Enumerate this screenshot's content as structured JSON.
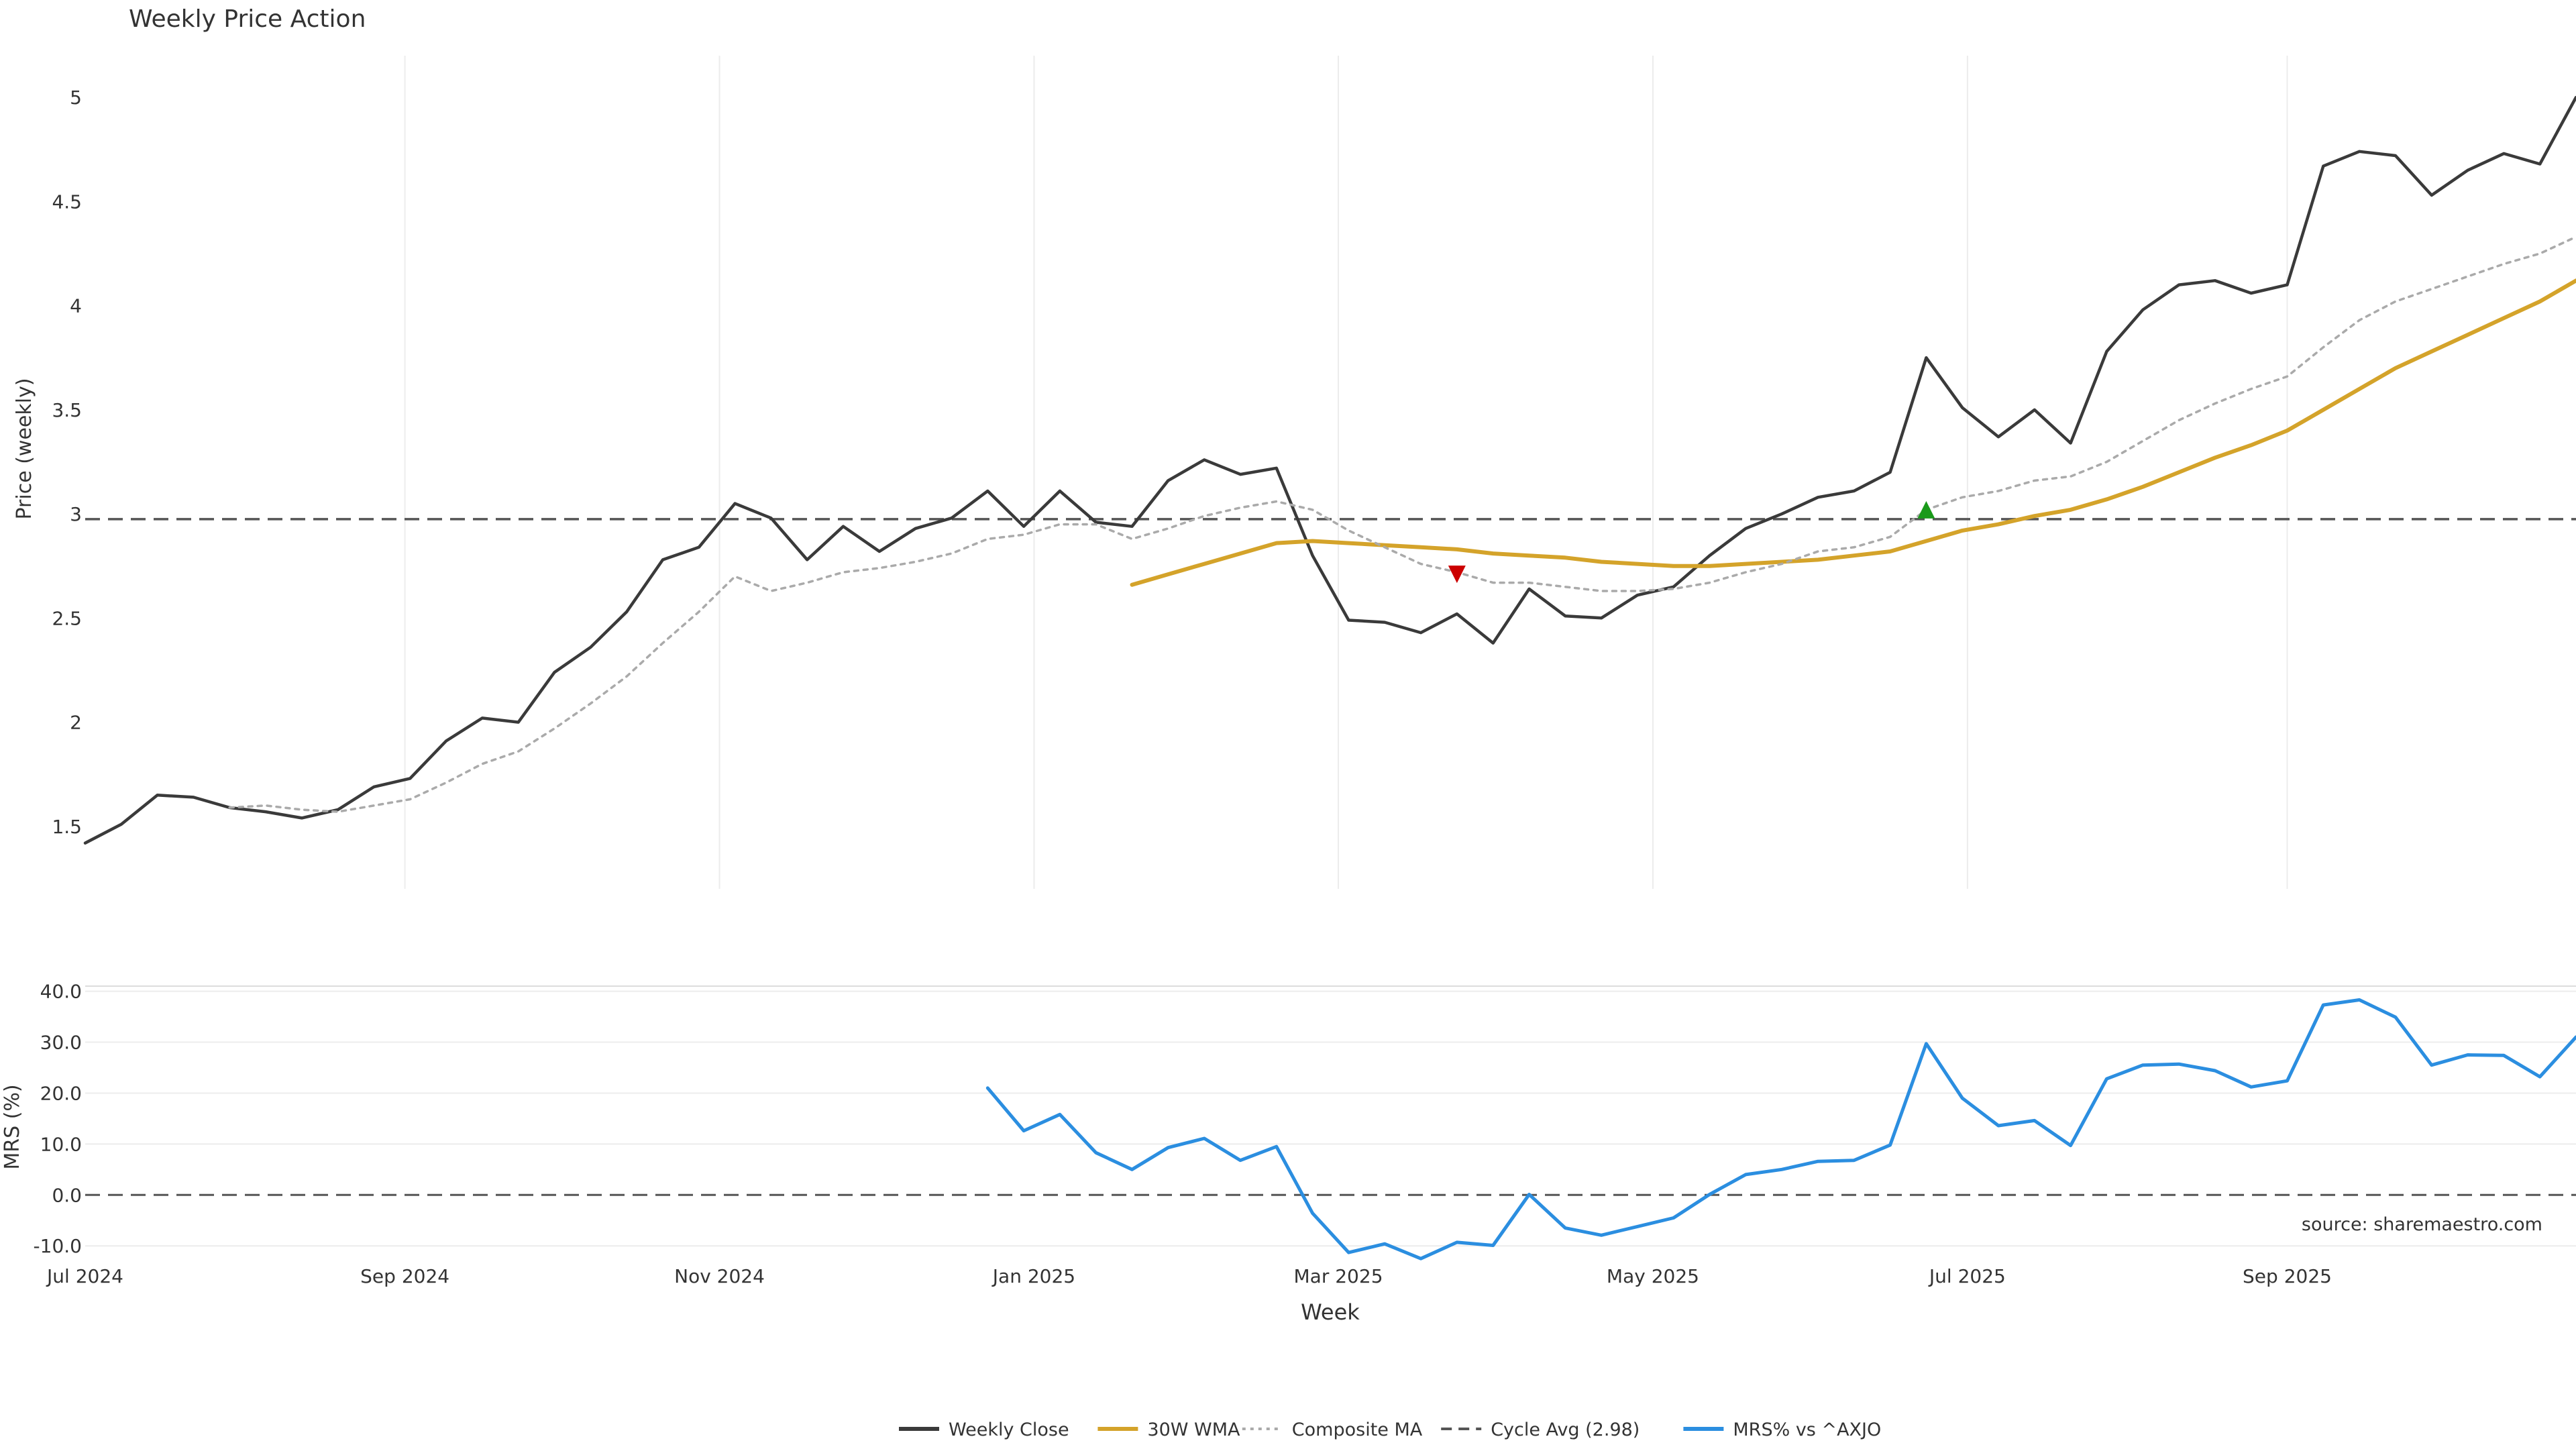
{
  "chart_data": [
    {
      "type": "line",
      "title": "Weekly Price Action",
      "ylabel": "Price (weekly)",
      "ylim": [
        1.2,
        5.2
      ],
      "yticks": [
        1.5,
        2,
        2.5,
        3,
        3.5,
        4,
        4.5,
        5
      ],
      "ytick_labels": [
        "1.5",
        "2",
        "2.5",
        "3",
        "3.5",
        "4",
        "4.5",
        "5"
      ],
      "grid": "vertical",
      "reference_line": {
        "name": "Cycle Avg (2.98)",
        "y": 2.975,
        "style": "dashed"
      },
      "series": [
        {
          "name": "Weekly Close",
          "color": "#3a3a3a",
          "style": "solid",
          "x": [
            "2024-07-01",
            "2024-07-08",
            "2024-07-15",
            "2024-07-22",
            "2024-07-29",
            "2024-08-05",
            "2024-08-12",
            "2024-08-19",
            "2024-08-26",
            "2024-09-02",
            "2024-09-09",
            "2024-09-16",
            "2024-09-23",
            "2024-09-30",
            "2024-10-07",
            "2024-10-14",
            "2024-10-21",
            "2024-10-28",
            "2024-11-04",
            "2024-11-11",
            "2024-11-18",
            "2024-11-25",
            "2024-12-02",
            "2024-12-09",
            "2024-12-16",
            "2024-12-23",
            "2024-12-30",
            "2025-01-06",
            "2025-01-13",
            "2025-01-20",
            "2025-01-27",
            "2025-02-03",
            "2025-02-10",
            "2025-02-17",
            "2025-02-24",
            "2025-03-03",
            "2025-03-10",
            "2025-03-17",
            "2025-03-24",
            "2025-03-31",
            "2025-04-07",
            "2025-04-14",
            "2025-04-21",
            "2025-04-28",
            "2025-05-05",
            "2025-05-12",
            "2025-05-19",
            "2025-05-26",
            "2025-06-02",
            "2025-06-09",
            "2025-06-16",
            "2025-06-23",
            "2025-06-30",
            "2025-07-07",
            "2025-07-14",
            "2025-07-21",
            "2025-07-28",
            "2025-08-04",
            "2025-08-11",
            "2025-08-18",
            "2025-08-25",
            "2025-09-01",
            "2025-09-08",
            "2025-09-15",
            "2025-09-22",
            "2025-09-29",
            "2025-10-06",
            "2025-10-13",
            "2025-10-20",
            "2025-10-27"
          ],
          "y": [
            1.42,
            1.51,
            1.65,
            1.64,
            1.59,
            1.57,
            1.54,
            1.58,
            1.69,
            1.73,
            1.91,
            2.02,
            2.0,
            2.24,
            2.36,
            2.53,
            2.78,
            2.84,
            3.05,
            2.98,
            2.78,
            2.94,
            2.82,
            2.93,
            2.98,
            3.11,
            2.94,
            3.11,
            2.96,
            2.94,
            3.16,
            3.26,
            3.19,
            3.22,
            2.8,
            2.49,
            2.48,
            2.43,
            2.52,
            2.38,
            2.64,
            2.51,
            2.5,
            2.61,
            2.65,
            2.8,
            2.93,
            3.0,
            3.08,
            3.11,
            3.2,
            3.75,
            3.51,
            3.37,
            3.5,
            3.34,
            3.78,
            3.98,
            4.1,
            4.12,
            4.06,
            4.1,
            4.67,
            4.74,
            4.72,
            4.53,
            4.65,
            4.73,
            4.68,
            5.0
          ]
        },
        {
          "name": "30W WMA",
          "color": "#d4a32a",
          "style": "solid",
          "x": [
            "2025-01-20",
            "2025-01-27",
            "2025-02-03",
            "2025-02-10",
            "2025-02-17",
            "2025-02-24",
            "2025-03-03",
            "2025-03-10",
            "2025-03-17",
            "2025-03-24",
            "2025-03-31",
            "2025-04-07",
            "2025-04-14",
            "2025-04-21",
            "2025-04-28",
            "2025-05-05",
            "2025-05-12",
            "2025-05-19",
            "2025-05-26",
            "2025-06-02",
            "2025-06-09",
            "2025-06-16",
            "2025-06-23",
            "2025-06-30",
            "2025-07-07",
            "2025-07-14",
            "2025-07-21",
            "2025-07-28",
            "2025-08-04",
            "2025-08-11",
            "2025-08-18",
            "2025-08-25",
            "2025-09-01",
            "2025-09-08",
            "2025-09-15",
            "2025-09-22",
            "2025-09-29",
            "2025-10-06",
            "2025-10-13",
            "2025-10-20",
            "2025-10-27"
          ],
          "y": [
            2.66,
            2.71,
            2.76,
            2.81,
            2.86,
            2.87,
            2.86,
            2.85,
            2.84,
            2.83,
            2.81,
            2.8,
            2.79,
            2.77,
            2.76,
            2.75,
            2.75,
            2.76,
            2.77,
            2.78,
            2.8,
            2.82,
            2.87,
            2.92,
            2.95,
            2.99,
            3.02,
            3.07,
            3.13,
            3.2,
            3.27,
            3.33,
            3.4,
            3.5,
            3.6,
            3.7,
            3.78,
            3.86,
            3.94,
            4.02,
            4.12
          ]
        },
        {
          "name": "Composite MA",
          "color": "#aaaaaa",
          "style": "dotted",
          "x": [
            "2024-07-29",
            "2024-08-05",
            "2024-08-12",
            "2024-08-19",
            "2024-08-26",
            "2024-09-02",
            "2024-09-09",
            "2024-09-16",
            "2024-09-23",
            "2024-09-30",
            "2024-10-07",
            "2024-10-14",
            "2024-10-21",
            "2024-10-28",
            "2024-11-04",
            "2024-11-11",
            "2024-11-18",
            "2024-11-25",
            "2024-12-02",
            "2024-12-09",
            "2024-12-16",
            "2024-12-23",
            "2024-12-30",
            "2025-01-06",
            "2025-01-13",
            "2025-01-20",
            "2025-01-27",
            "2025-02-03",
            "2025-02-10",
            "2025-02-17",
            "2025-02-24",
            "2025-03-03",
            "2025-03-10",
            "2025-03-17",
            "2025-03-24",
            "2025-03-31",
            "2025-04-07",
            "2025-04-14",
            "2025-04-21",
            "2025-04-28",
            "2025-05-05",
            "2025-05-12",
            "2025-05-19",
            "2025-05-26",
            "2025-06-02",
            "2025-06-09",
            "2025-06-16",
            "2025-06-23",
            "2025-06-30",
            "2025-07-07",
            "2025-07-14",
            "2025-07-21",
            "2025-07-28",
            "2025-08-04",
            "2025-08-11",
            "2025-08-18",
            "2025-08-25",
            "2025-09-01",
            "2025-09-08",
            "2025-09-15",
            "2025-09-22",
            "2025-09-29",
            "2025-10-06",
            "2025-10-13",
            "2025-10-20",
            "2025-10-27"
          ],
          "y": [
            1.59,
            1.6,
            1.58,
            1.57,
            1.6,
            1.63,
            1.71,
            1.8,
            1.86,
            1.97,
            2.09,
            2.22,
            2.38,
            2.53,
            2.7,
            2.63,
            2.67,
            2.72,
            2.74,
            2.77,
            2.81,
            2.88,
            2.9,
            2.95,
            2.95,
            2.88,
            2.93,
            2.99,
            3.03,
            3.06,
            3.02,
            2.92,
            2.84,
            2.76,
            2.72,
            2.67,
            2.67,
            2.65,
            2.63,
            2.63,
            2.64,
            2.67,
            2.72,
            2.76,
            2.82,
            2.84,
            2.89,
            3.02,
            3.08,
            3.11,
            3.16,
            3.18,
            3.25,
            3.35,
            3.45,
            3.53,
            3.6,
            3.66,
            3.8,
            3.93,
            4.02,
            4.08,
            4.14,
            4.2,
            4.25,
            4.33
          ]
        }
      ],
      "annotations": [
        {
          "type": "triangle-down",
          "x": "2025-03-24",
          "y": 2.71,
          "color": "#cc0000"
        },
        {
          "type": "triangle-up",
          "x": "2025-06-23",
          "y": 3.02,
          "color": "#1a9a1a"
        }
      ]
    },
    {
      "type": "line",
      "ylabel": "MRS (%)",
      "xlabel": "Week",
      "ylim": [
        -13,
        41
      ],
      "yticks": [
        -10,
        0,
        10,
        20,
        30,
        40
      ],
      "ytick_labels": [
        "-10.0",
        "0.0",
        "10.0",
        "20.0",
        "30.0",
        "40.0"
      ],
      "grid": "horizontal",
      "reference_line": {
        "y": 0,
        "style": "dashed"
      },
      "xticks": [
        "2024-07-01",
        "2024-09-01",
        "2024-11-01",
        "2025-01-01",
        "2025-03-01",
        "2025-05-01",
        "2025-07-01",
        "2025-09-01"
      ],
      "xtick_labels": [
        "Jul 2024",
        "Sep 2024",
        "Nov 2024",
        "Jan 2025",
        "Mar 2025",
        "May 2025",
        "Jul 2025",
        "Sep 2025"
      ],
      "xlim": [
        "2024-07-01",
        "2025-10-27"
      ],
      "series": [
        {
          "name": "MRS% vs ^AXJO",
          "color": "#2b8ee0",
          "style": "solid",
          "x": [
            "2024-12-23",
            "2024-12-30",
            "2025-01-06",
            "2025-01-13",
            "2025-01-20",
            "2025-01-27",
            "2025-02-03",
            "2025-02-10",
            "2025-02-17",
            "2025-02-24",
            "2025-03-03",
            "2025-03-10",
            "2025-03-17",
            "2025-03-24",
            "2025-03-31",
            "2025-04-07",
            "2025-04-14",
            "2025-04-21",
            "2025-04-28",
            "2025-05-05",
            "2025-05-12",
            "2025-05-19",
            "2025-05-26",
            "2025-06-02",
            "2025-06-09",
            "2025-06-16",
            "2025-06-23",
            "2025-06-30",
            "2025-07-07",
            "2025-07-14",
            "2025-07-21",
            "2025-07-28",
            "2025-08-04",
            "2025-08-11",
            "2025-08-18",
            "2025-08-25",
            "2025-09-01",
            "2025-09-08",
            "2025-09-15",
            "2025-09-22",
            "2025-09-29",
            "2025-10-06",
            "2025-10-13",
            "2025-10-20",
            "2025-10-27"
          ],
          "y": [
            21,
            12.6,
            15.8,
            8.3,
            5,
            9.3,
            11.1,
            6.8,
            9.5,
            -3.6,
            -11.3,
            -9.6,
            -12.5,
            -9.3,
            -9.9,
            0.1,
            -6.5,
            -7.9,
            -6.2,
            -4.5,
            0.1,
            4,
            5,
            6.6,
            6.8,
            9.8,
            29.7,
            19,
            13.6,
            14.6,
            9.7,
            22.8,
            25.5,
            25.7,
            24.4,
            21.2,
            22.4,
            37.3,
            38.3,
            34.9,
            25.5,
            27.5,
            27.4,
            23.2,
            31
          ]
        }
      ]
    }
  ],
  "legend": {
    "placement": "bottom-center",
    "items": [
      {
        "label": "Weekly Close",
        "color": "#3a3a3a",
        "style": "solid"
      },
      {
        "label": "30W WMA",
        "color": "#d4a32a",
        "style": "solid"
      },
      {
        "label": "Composite MA",
        "color": "#aaaaaa",
        "style": "dotted"
      },
      {
        "label": "Cycle Avg (2.98)",
        "color": "#555555",
        "style": "dashed"
      },
      {
        "label": "MRS% vs ^AXJO",
        "color": "#2b8ee0",
        "style": "solid"
      }
    ]
  },
  "source_note": "source: sharemaestro.com"
}
